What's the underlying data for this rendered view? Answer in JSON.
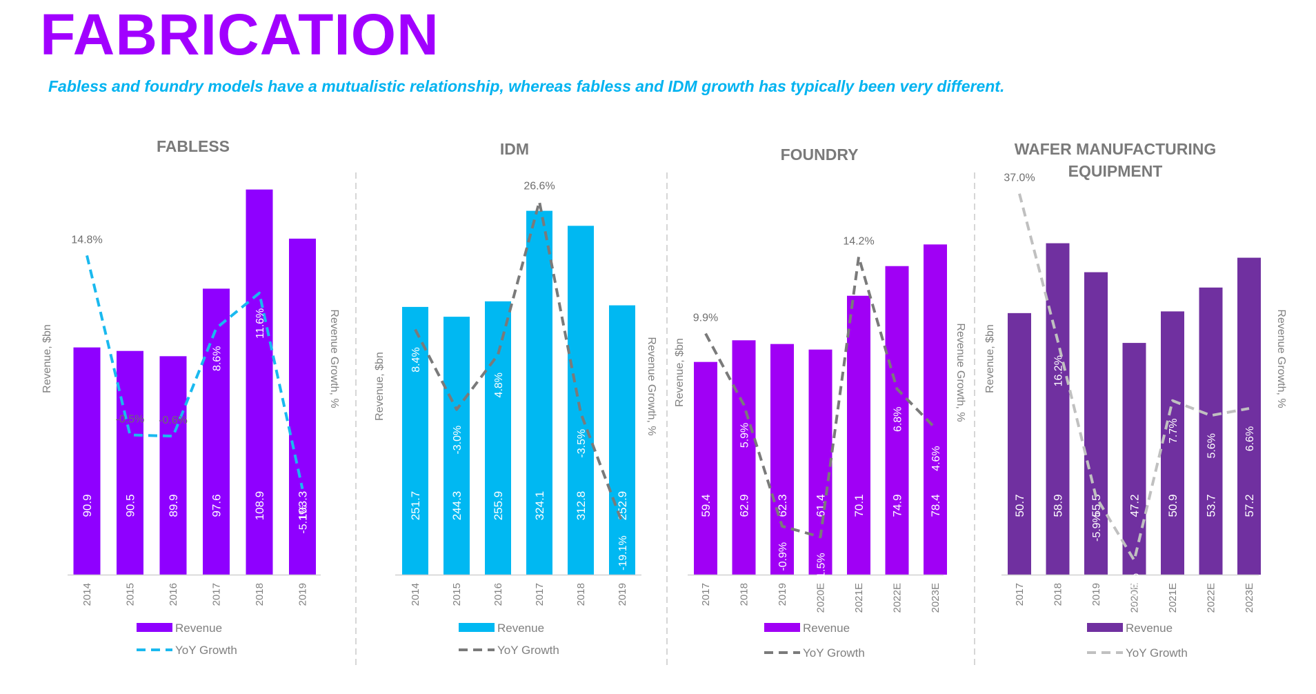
{
  "page": {
    "title": "FABRICATION",
    "subtitle": "Fabless and foundry models have a mutualistic relationship, whereas fabless and IDM growth has typically been very different."
  },
  "colors": {
    "title": "#a100ff",
    "subtitle": "#00b3f0",
    "fabless_bar": "#8f00ff",
    "fabless_line": "#1ab9ef",
    "idm_bar": "#00b8f2",
    "idm_line": "#7a7a7a",
    "foundry_bar": "#a000f5",
    "foundry_line": "#7a7a7a",
    "wfe_bar": "#7030a0",
    "wfe_line": "#c0c0c0"
  },
  "chart_data": [
    {
      "id": "fabless",
      "type": "bar",
      "title": [
        "FABLESS"
      ],
      "categories": [
        "2014",
        "2015",
        "2016",
        "2017",
        "2018",
        "2019"
      ],
      "series": [
        {
          "name": "Revenue",
          "type": "bar",
          "values": [
            90.9,
            90.5,
            89.9,
            97.6,
            108.9,
            103.3
          ]
        },
        {
          "name": "YoY Growth",
          "type": "line",
          "values": [
            14.8,
            -0.5,
            -0.6,
            8.6,
            11.6,
            -5.1
          ]
        }
      ],
      "value_labels": [
        "90.9",
        "90.5",
        "89.9",
        "97.6",
        "108.9",
        "103.3"
      ],
      "growth_labels": [
        "14.8%",
        "-0.5%",
        "-0.6%",
        "8.6%",
        "11.6%",
        "-5.1%"
      ],
      "ylabel": "Revenue, $bn",
      "y2label": "Revenue Growth, %",
      "legend": [
        "Revenue",
        "YoY Growth"
      ]
    },
    {
      "id": "idm",
      "type": "bar",
      "title": [
        "IDM"
      ],
      "categories": [
        "2014",
        "2015",
        "2016",
        "2017",
        "2018",
        "2019"
      ],
      "series": [
        {
          "name": "Revenue",
          "type": "bar",
          "values": [
            251.7,
            244.3,
            255.9,
            324.1,
            312.8,
            252.9
          ]
        },
        {
          "name": "YoY Growth",
          "type": "line",
          "values": [
            8.4,
            -3.0,
            4.8,
            26.6,
            -3.5,
            -19.1
          ]
        }
      ],
      "value_labels": [
        "251.7",
        "244.3",
        "255.9",
        "324.1",
        "312.8",
        "252.9"
      ],
      "growth_labels": [
        "8.4%",
        "-3.0%",
        "4.8%",
        "26.6%",
        "-3.5%",
        "-19.1%"
      ],
      "ylabel": "Revenue, $bn",
      "y2label": "Revenue Growth, %",
      "legend": [
        "Revenue",
        "YoY Growth"
      ]
    },
    {
      "id": "foundry",
      "type": "bar",
      "title": [
        "FOUNDRY"
      ],
      "categories": [
        "2017",
        "2018",
        "2019",
        "2020E",
        "2021E",
        "2022E",
        "2023E"
      ],
      "series": [
        {
          "name": "Revenue",
          "type": "bar",
          "values": [
            59.4,
            62.9,
            62.3,
            61.4,
            70.1,
            74.9,
            78.4
          ]
        },
        {
          "name": "YoY Growth",
          "type": "line",
          "values": [
            9.9,
            5.9,
            -0.9,
            -1.5,
            14.2,
            6.8,
            4.6
          ]
        }
      ],
      "value_labels": [
        "59.4",
        "62.9",
        "62.3",
        "61.4",
        "70.1",
        "74.9",
        "78.4"
      ],
      "growth_labels": [
        "9.9%",
        "5.9%",
        "-0.9%",
        "-1.5%",
        "14.2%",
        "6.8%",
        "4.6%"
      ],
      "ylabel": "Revenue, $bn",
      "y2label": "Revenue Growth, %",
      "legend": [
        "Revenue",
        "YoY Growth"
      ]
    },
    {
      "id": "wfe",
      "type": "bar",
      "title": [
        "WAFER MANUFACTURING",
        "EQUIPMENT"
      ],
      "categories": [
        "2017",
        "2018",
        "2019",
        "2020E",
        "2021E",
        "2022E",
        "2023E"
      ],
      "series": [
        {
          "name": "Revenue",
          "type": "bar",
          "values": [
            50.7,
            58.9,
            55.5,
            47.2,
            50.9,
            53.7,
            57.2
          ]
        },
        {
          "name": "YoY Growth",
          "type": "line",
          "values": [
            37.0,
            16.2,
            -5.9,
            -14.9,
            7.7,
            5.6,
            6.6
          ]
        }
      ],
      "value_labels": [
        "50.7",
        "58.9",
        "55.5",
        "47.2",
        "50.9",
        "53.7",
        "57.2"
      ],
      "growth_labels": [
        "37.0%",
        "16.2%",
        "-5.9%",
        "-14.9%",
        "7.7%",
        "5.6%",
        "6.6%"
      ],
      "ylabel": "Revenue, $bn",
      "y2label": "Revenue Growth, %",
      "legend": [
        "Revenue",
        "YoY Growth"
      ]
    }
  ]
}
